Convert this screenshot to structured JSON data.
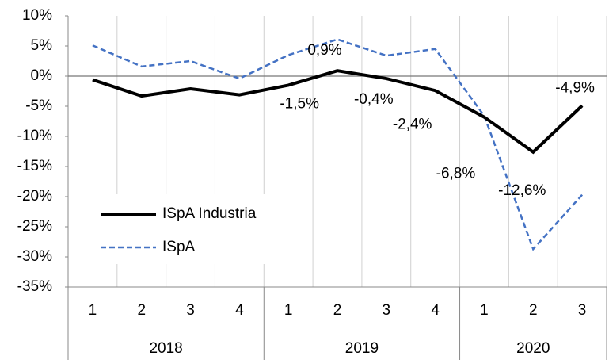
{
  "chart_data": {
    "type": "line",
    "categories": [
      "1",
      "2",
      "3",
      "4",
      "1",
      "2",
      "3",
      "4",
      "1",
      "2",
      "3"
    ],
    "groups": [
      {
        "label": "2018",
        "size": 4
      },
      {
        "label": "2019",
        "size": 4
      },
      {
        "label": "2020",
        "size": 3
      }
    ],
    "series": [
      {
        "name": "ISpA Industria",
        "color": "#000000",
        "dash": false,
        "values": [
          -0.6,
          -3.3,
          -2.1,
          -3.1,
          -1.5,
          0.9,
          -0.4,
          -2.4,
          -6.8,
          -12.6,
          -4.9
        ],
        "value_labels": [
          null,
          null,
          null,
          null,
          "-1,5%",
          "0,9%",
          "-0,4%",
          "-2,4%",
          "-6,8%",
          "-12,6%",
          "-4,9%"
        ]
      },
      {
        "name": "ISpA",
        "color": "#4472c4",
        "dash": true,
        "values": [
          5.1,
          1.6,
          2.5,
          -0.4,
          3.5,
          6.1,
          3.4,
          4.5,
          -6.6,
          -28.7,
          -19.7
        ]
      }
    ],
    "ylim": [
      -35,
      10
    ],
    "yticks": [
      {
        "value": -35,
        "label": "-35%"
      },
      {
        "value": -30,
        "label": "-30%"
      },
      {
        "value": -25,
        "label": "-25%"
      },
      {
        "value": -20,
        "label": "-20%"
      },
      {
        "value": -15,
        "label": "-15%"
      },
      {
        "value": -10,
        "label": "-10%"
      },
      {
        "value": -5,
        "label": "-5%"
      },
      {
        "value": 0,
        "label": "0%"
      },
      {
        "value": 5,
        "label": "5%"
      },
      {
        "value": 10,
        "label": "10%"
      }
    ],
    "grid": true
  }
}
